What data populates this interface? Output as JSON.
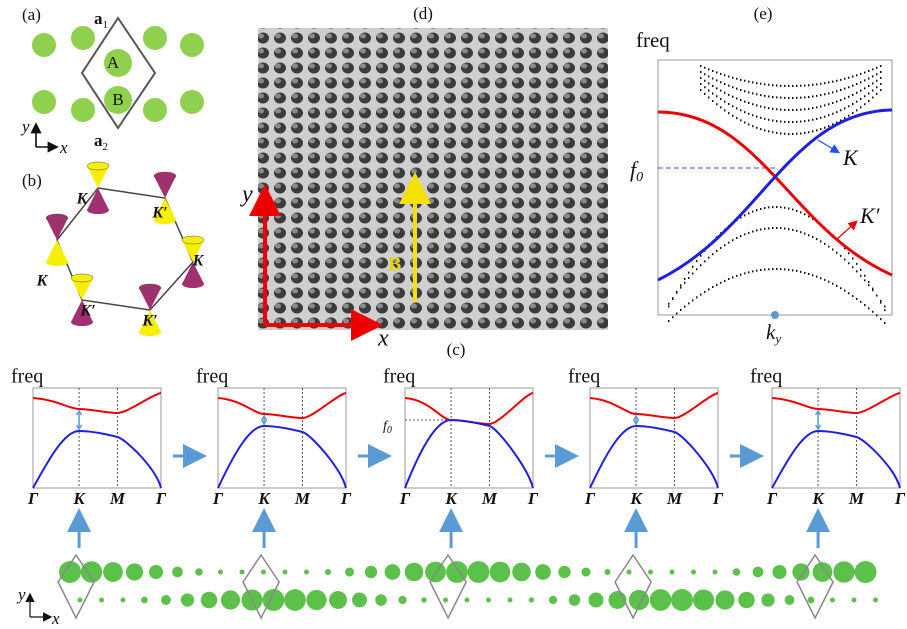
{
  "panel_a": {
    "label": "(a)",
    "a1": {
      "base": "a",
      "sub": "1"
    },
    "a2": {
      "base": "a",
      "sub": "2"
    },
    "site_A": "A",
    "site_B": "B",
    "axis_y": "y",
    "axis_x": "x"
  },
  "panel_b": {
    "label": "(b)",
    "valleys": [
      "K",
      "K′",
      "K",
      "K′",
      "K",
      "K′"
    ]
  },
  "panel_d": {
    "label": "(d)",
    "axis_y": "y",
    "axis_x": "x",
    "field": "B"
  },
  "panel_e": {
    "label": "(e)",
    "ylabel": "freq",
    "f0": {
      "base": "f",
      "sub": "0"
    },
    "curve_K": "K",
    "curve_Kp": "K′",
    "xlabel": {
      "base": "k",
      "sub": "y"
    }
  },
  "panel_c": {
    "label": "(c)",
    "f0": {
      "base": "f",
      "sub": "0"
    },
    "axis_y": "y",
    "axis_x": "x",
    "plots": [
      {
        "ylabel": "freq",
        "xticks": [
          "Γ",
          "K",
          "M",
          "Γ"
        ]
      },
      {
        "ylabel": "freq",
        "xticks": [
          "Γ",
          "K",
          "M",
          "Γ"
        ]
      },
      {
        "ylabel": "freq",
        "xticks": [
          "Γ",
          "K",
          "M",
          "Γ"
        ]
      },
      {
        "ylabel": "freq",
        "xticks": [
          "Γ",
          "K",
          "M",
          "Γ"
        ]
      },
      {
        "ylabel": "freq",
        "xticks": [
          "Γ",
          "K",
          "M",
          "Γ"
        ]
      }
    ]
  }
}
